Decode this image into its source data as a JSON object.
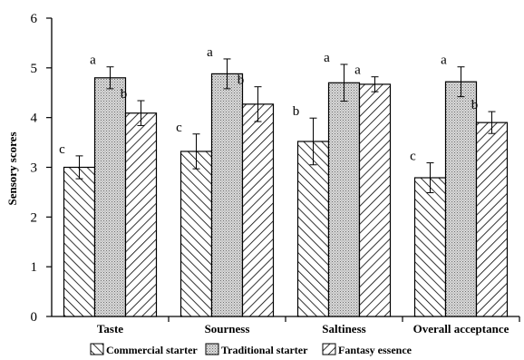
{
  "chart_data": {
    "type": "bar",
    "ylabel": "Sensory scores",
    "ylim": [
      0,
      6
    ],
    "yticks": [
      0,
      1,
      2,
      3,
      4,
      5,
      6
    ],
    "grid": false,
    "legend_position": "bottom",
    "categories": [
      "Taste",
      "Sourness",
      "Saltiness",
      "Overall acceptance"
    ],
    "series": [
      {
        "name": "Commercial starter",
        "pattern": "diagonal-backslash",
        "values": [
          3.0,
          3.32,
          3.52,
          2.79
        ],
        "errors": [
          0.23,
          0.35,
          0.47,
          0.3
        ],
        "labels": [
          "c",
          "c",
          "b",
          "c"
        ]
      },
      {
        "name": "Traditional starter",
        "pattern": "dotted",
        "values": [
          4.8,
          4.88,
          4.7,
          4.72
        ],
        "errors": [
          0.22,
          0.3,
          0.37,
          0.3
        ],
        "labels": [
          "a",
          "a",
          "a",
          "a"
        ]
      },
      {
        "name": "Fantasy essence",
        "pattern": "diagonal-slash",
        "values": [
          4.09,
          4.27,
          4.67,
          3.9
        ],
        "errors": [
          0.25,
          0.35,
          0.15,
          0.22
        ],
        "labels": [
          "b",
          "b",
          "a",
          "b"
        ]
      }
    ]
  }
}
